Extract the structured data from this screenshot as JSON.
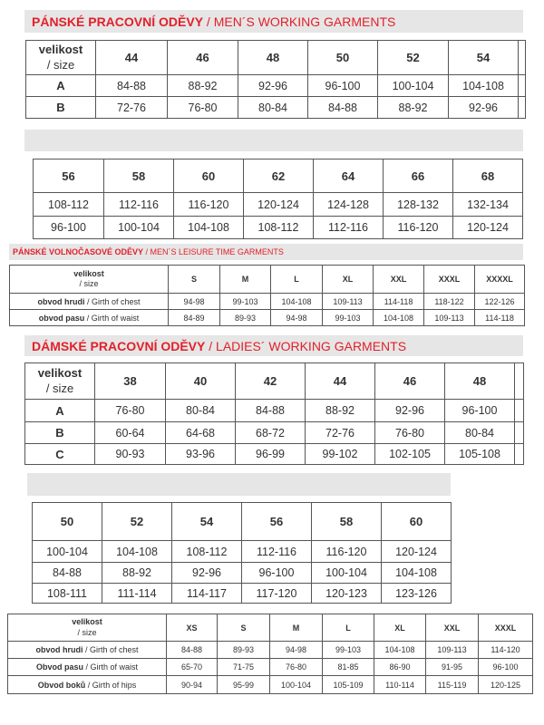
{
  "sections": {
    "mens_working": {
      "title_cz": "PÁNSKÉ PRACOVNÍ ODĚVY",
      "title_en": " / MEN´S WORKING GARMENTS",
      "size_label": "velikost",
      "size_sub": "/ size",
      "part1": {
        "sizes": [
          "44",
          "46",
          "48",
          "50",
          "52",
          "54"
        ],
        "rows": [
          {
            "label": "A",
            "values": [
              "84-88",
              "88-92",
              "92-96",
              "96-100",
              "100-104",
              "104-108"
            ]
          },
          {
            "label": "B",
            "values": [
              "72-76",
              "76-80",
              "80-84",
              "84-88",
              "88-92",
              "92-96"
            ]
          }
        ]
      },
      "part2": {
        "sizes": [
          "56",
          "58",
          "60",
          "62",
          "64",
          "66",
          "68"
        ],
        "rows": [
          {
            "values": [
              "108-112",
              "112-116",
              "116-120",
              "120-124",
              "124-128",
              "128-132",
              "132-134"
            ]
          },
          {
            "values": [
              "96-100",
              "100-104",
              "104-108",
              "108-112",
              "112-116",
              "116-120",
              "120-124"
            ]
          }
        ]
      }
    },
    "mens_leisure": {
      "title_cz": "PÁNSKÉ VOLNOČASOVÉ ODĚVY",
      "title_en": " / MEN´S LEISURE TIME GARMENTS",
      "size_label": "velikost",
      "size_sub": "/ size",
      "sizes": [
        "S",
        "M",
        "L",
        "XL",
        "XXL",
        "XXXL",
        "XXXXL"
      ],
      "rows": [
        {
          "label_cz": "obvod hrudi ",
          "label_en": " / Girth of chest",
          "values": [
            "94-98",
            "99-103",
            "104-108",
            "109-113",
            "114-118",
            "118-122",
            "122-126"
          ]
        },
        {
          "label_cz": "obvod pasu",
          "label_en": " / Girth of waist",
          "values": [
            "84-89",
            "89-93",
            "94-98",
            "99-103",
            "104-108",
            "109-113",
            "114-118"
          ]
        }
      ]
    },
    "ladies_working": {
      "title_cz": "DÁMSKÉ PRACOVNÍ ODĚVY",
      "title_en": " / LADIES´ WORKING GARMENTS",
      "size_label": "velikost",
      "size_sub": "/ size",
      "part1": {
        "sizes": [
          "38",
          "40",
          "42",
          "44",
          "46",
          "48"
        ],
        "rows": [
          {
            "label": "A",
            "values": [
              "76-80",
              "80-84",
              "84-88",
              "88-92",
              "92-96",
              "96-100"
            ]
          },
          {
            "label": "B",
            "values": [
              "60-64",
              "64-68",
              "68-72",
              "72-76",
              "76-80",
              "80-84"
            ]
          },
          {
            "label": "C",
            "values": [
              "90-93",
              "93-96",
              "96-99",
              "99-102",
              "102-105",
              "105-108"
            ]
          }
        ]
      },
      "part2": {
        "sizes": [
          "50",
          "52",
          "54",
          "56",
          "58",
          "60"
        ],
        "rows": [
          {
            "values": [
              "100-104",
              "104-108",
              "108-112",
              "112-116",
              "116-120",
              "120-124"
            ]
          },
          {
            "values": [
              "84-88",
              "88-92",
              "92-96",
              "96-100",
              "100-104",
              "104-108"
            ]
          },
          {
            "values": [
              "108-111",
              "111-114",
              "114-117",
              "117-120",
              "120-123",
              "123-126"
            ]
          }
        ]
      }
    },
    "ladies_leisure": {
      "size_label": "velikost",
      "size_sub": "/ size",
      "sizes": [
        "XS",
        "S",
        "M",
        "L",
        "XL",
        "XXL",
        "XXXL"
      ],
      "rows": [
        {
          "label_cz": "obvod hrudi",
          "label_en": " / Girth of chest",
          "values": [
            "84-88",
            "89-93",
            "94-98",
            "99-103",
            "104-108",
            "109-113",
            "114-120"
          ]
        },
        {
          "label_cz": "Obvod pasu",
          "label_en": " / Girth of waist",
          "values": [
            "65-70",
            "71-75",
            "76-80",
            "81-85",
            "86-90",
            "91-95",
            "96-100"
          ]
        },
        {
          "label_cz": "Obvod boků",
          "label_en": " / Girth of hips",
          "values": [
            "90-94",
            "95-99",
            "100-104",
            "105-109",
            "110-114",
            "115-119",
            "120-125"
          ]
        }
      ]
    }
  },
  "colors": {
    "accent": "#e3202a",
    "bar": "#e6e6e6",
    "border": "#555555"
  }
}
